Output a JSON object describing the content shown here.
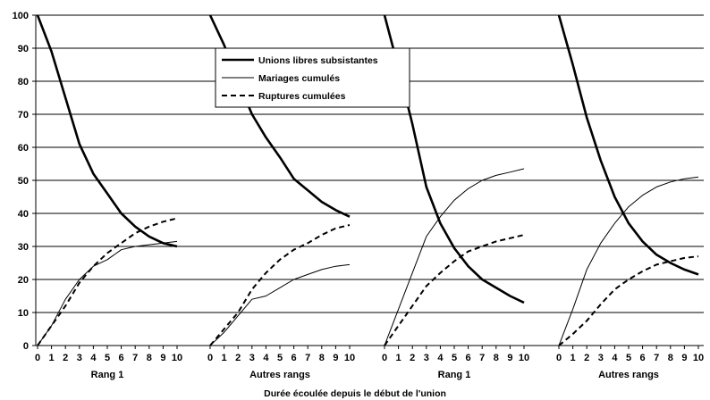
{
  "chart_data": {
    "type": "line",
    "title": "",
    "xlabel": "Durée écoulée depuis le début de l'union",
    "ylabel": "",
    "ylim": [
      0,
      100
    ],
    "yticks": [
      0,
      10,
      20,
      30,
      40,
      50,
      60,
      70,
      80,
      90,
      100
    ],
    "x": [
      0,
      1,
      2,
      3,
      4,
      5,
      6,
      7,
      8,
      9,
      10
    ],
    "x_tick_labels": [
      "0",
      "1",
      "2",
      "3",
      "4",
      "5",
      "6",
      "7",
      "8",
      "9",
      "10"
    ],
    "grid": "horizontal",
    "legend_position": "top-center",
    "legend": [
      {
        "name": "Unions libres subsistantes",
        "style": "thick-solid"
      },
      {
        "name": "Mariages cumulés",
        "style": "thin-solid"
      },
      {
        "name": "Ruptures cumulées",
        "style": "dashed"
      }
    ],
    "panels": [
      {
        "label": "Rang 1",
        "series": [
          {
            "name": "Unions libres subsistantes",
            "values": [
              100,
              89,
              75,
              61,
              52,
              46,
              40,
              36,
              33,
              31,
              30
            ]
          },
          {
            "name": "Mariages cumulés",
            "values": [
              0,
              6,
              14,
              20,
              24,
              26,
              29,
              30,
              30.5,
              31,
              31.5
            ]
          },
          {
            "name": "Ruptures cumulées",
            "values": [
              0,
              6,
              12,
              19,
              24,
              28,
              31,
              34,
              36,
              37.5,
              38.5
            ]
          }
        ]
      },
      {
        "label": "Autres rangs",
        "series": [
          {
            "name": "Unions libres subsistantes",
            "values": [
              100,
              91,
              80,
              70,
              63,
              57,
              50.5,
              47,
              43.5,
              41,
              39
            ]
          },
          {
            "name": "Mariages cumulés",
            "values": [
              0,
              4,
              9,
              14,
              15,
              17.5,
              20,
              21.5,
              23,
              24,
              24.5
            ]
          },
          {
            "name": "Ruptures cumulées",
            "values": [
              0,
              5,
              10,
              17,
              22,
              26,
              29,
              31,
              33.5,
              35.5,
              36.5
            ]
          }
        ]
      },
      {
        "label": "Rang 1",
        "series": [
          {
            "name": "Unions libres subsistantes",
            "values": [
              100,
              84,
              67,
              48,
              37,
              29.5,
              24,
              20,
              17.5,
              15,
              13
            ]
          },
          {
            "name": "Mariages cumulés",
            "values": [
              0,
              11,
              22,
              33,
              39,
              44,
              47.5,
              50,
              51.5,
              52.5,
              53.5
            ]
          },
          {
            "name": "Ruptures cumulées",
            "values": [
              0,
              6,
              12,
              18,
              22,
              25.5,
              28.5,
              30,
              31.5,
              32.5,
              33.5
            ]
          }
        ]
      },
      {
        "label": "Autres rangs",
        "series": [
          {
            "name": "Unions libres subsistantes",
            "values": [
              100,
              85,
              69,
              56,
              45,
              37,
              31.5,
              27.5,
              25,
              23,
              21.5
            ]
          },
          {
            "name": "Mariages cumulés",
            "values": [
              0,
              11,
              23,
              31,
              37,
              42,
              45.5,
              48,
              49.5,
              50.5,
              51
            ]
          },
          {
            "name": "Ruptures cumulées",
            "values": [
              0,
              3.5,
              7.5,
              12.5,
              17,
              20,
              22.5,
              24.5,
              25.5,
              26.5,
              27
            ]
          }
        ]
      }
    ]
  }
}
